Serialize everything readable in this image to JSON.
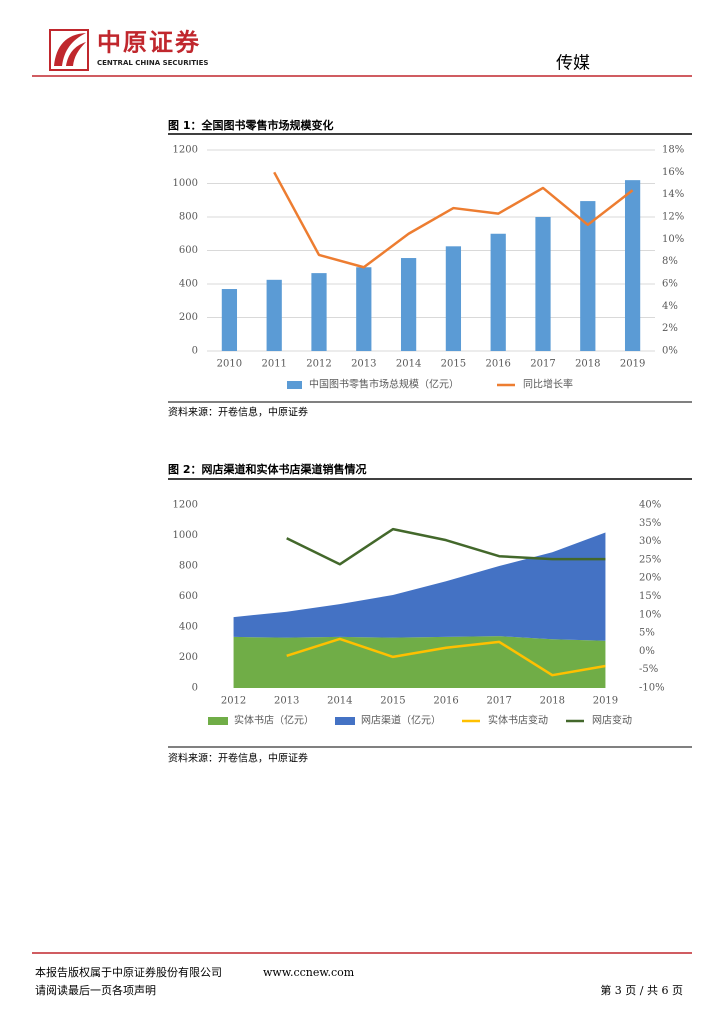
{
  "header": {
    "company": "中原证券",
    "company_en": "CENTRAL CHINA SECURITIES",
    "section": "传媒"
  },
  "chart_data": [
    {
      "type": "combo",
      "title": "图 1：全国图书零售市场规模变化",
      "categories": [
        "2010",
        "2011",
        "2012",
        "2013",
        "2014",
        "2015",
        "2016",
        "2017",
        "2018",
        "2019"
      ],
      "series": [
        {
          "name": "中国图书零售市场总规模（亿元）",
          "type": "bar",
          "color": "#5b9bd5",
          "values": [
            370,
            425,
            465,
            500,
            555,
            625,
            700,
            800,
            895,
            1020
          ]
        },
        {
          "name": "同比增长率",
          "type": "line",
          "axis": "y2",
          "color": "#ed7d31",
          "values": [
            null,
            16,
            8.6,
            7.5,
            10.5,
            12.8,
            12.3,
            14.6,
            11.3,
            14.4
          ]
        }
      ],
      "ylim": [
        0,
        1200
      ],
      "yticks": [
        0,
        200,
        400,
        600,
        800,
        1000,
        1200
      ],
      "y2lim": [
        0,
        18
      ],
      "y2ticks": [
        {
          "value": 0,
          "label": "0%"
        },
        {
          "value": 2,
          "label": "2%"
        },
        {
          "value": 4,
          "label": "4%"
        },
        {
          "value": 6,
          "label": "6%"
        },
        {
          "value": 8,
          "label": "8%"
        },
        {
          "value": 10,
          "label": "10%"
        },
        {
          "value": 12,
          "label": "12%"
        },
        {
          "value": 14,
          "label": "14%"
        },
        {
          "value": 16,
          "label": "16%"
        },
        {
          "value": 18,
          "label": "18%"
        }
      ],
      "grid": true
    },
    {
      "type": "combo",
      "title": "图 2：网店渠道和实体书店渠道销售情况",
      "categories": [
        "2012",
        "2013",
        "2014",
        "2015",
        "2016",
        "2017",
        "2018",
        "2019"
      ],
      "stacked": true,
      "series": [
        {
          "name": "实体书店（亿元）",
          "type": "area",
          "color": "#70ad47",
          "values": [
            335,
            330,
            335,
            330,
            335,
            340,
            320,
            310
          ]
        },
        {
          "name": "网店渠道（亿元）",
          "type": "area",
          "color": "#4472c4",
          "values": [
            130,
            170,
            215,
            280,
            365,
            460,
            570,
            710
          ]
        },
        {
          "name": "实体书店变动",
          "type": "line",
          "axis": "y2",
          "color": "#ffc000",
          "values": [
            null,
            -1.2,
            3.4,
            -1.5,
            1.0,
            2.6,
            -6.5,
            -4.0
          ]
        },
        {
          "name": "网店变动",
          "type": "line",
          "axis": "y2",
          "color": "#43682b",
          "values": [
            null,
            30.9,
            23.8,
            33.4,
            30.4,
            26,
            25.2,
            25.2
          ]
        }
      ],
      "ylim": [
        0,
        1200
      ],
      "yticks": [
        0,
        200,
        400,
        600,
        800,
        1000,
        1200
      ],
      "y2lim": [
        -10,
        40
      ],
      "y2ticks": [
        {
          "value": -10,
          "label": "-10%"
        },
        {
          "value": -5,
          "label": "-5%"
        },
        {
          "value": 0,
          "label": "0%"
        },
        {
          "value": 5,
          "label": "5%"
        },
        {
          "value": 10,
          "label": "10%"
        },
        {
          "value": 15,
          "label": "15%"
        },
        {
          "value": 20,
          "label": "20%"
        },
        {
          "value": 25,
          "label": "25%"
        },
        {
          "value": 30,
          "label": "30%"
        },
        {
          "value": 35,
          "label": "35%"
        },
        {
          "value": 40,
          "label": "40%"
        }
      ],
      "grid": false
    }
  ],
  "sources": [
    "资料来源：开卷信息，中原证券",
    "资料来源：开卷信息，中原证券"
  ],
  "footer": {
    "copyright": "本报告版权属于中原证券股份有限公司",
    "website": "www.ccnew.com",
    "disclaimer": "请阅读最后一页各项声明",
    "page": "第 3 页 / 共 6 页"
  }
}
